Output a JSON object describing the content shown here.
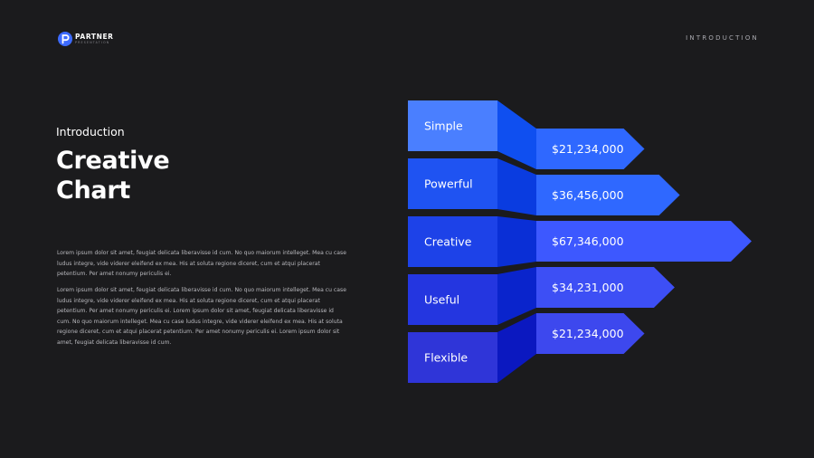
{
  "brand": {
    "name": "PARTNER",
    "tagline": "PRESENTATION"
  },
  "header": {
    "section": "INTRODUCTION"
  },
  "hero": {
    "subtitle": "Introduction",
    "title_line1": "Creative",
    "title_line2": "Chart"
  },
  "body": {
    "paragraph1": "Lorem ipsum dolor sit amet, feugiat delicata liberavisse id cum. No quo maiorum intelleget. Mea cu case ludus integre, vide viderer eleifend ex mea. His at soluta regione diceret, cum et atqui placerat petentium. Per amet nonumy periculis ei.",
    "paragraph2": "Lorem ipsum dolor sit amet, feugiat delicata liberavisse id cum. No quo maiorum intelleget. Mea cu case ludus integre, vide viderer eleifend ex mea. His at soluta regione diceret, cum et atqui placerat petentium. Per amet nonumy periculis ei. Lorem ipsum dolor sit amet, feugiat delicata liberavisse id cum. No quo maiorum intelleget. Mea cu case ludus integre, vide viderer eleifend ex mea. His at soluta regione diceret, cum et atqui placerat petentium. Per amet nonumy periculis ei. Lorem ipsum dolor sit amet, feugiat delicata liberavisse id cum."
  },
  "colors": {
    "background": "#1b1b1d",
    "accent": "#3d6bff",
    "tabs": [
      "#4a7fff",
      "#1f53f2",
      "#1d42e8",
      "#2436e0",
      "#2f35d8"
    ],
    "connectors": [
      "#0f4ff0",
      "#0a3ce0",
      "#0a2fd6",
      "#0a24cc",
      "#0b18c0"
    ],
    "arrows": [
      "#2f68ff",
      "#2f68ff",
      "#3d58ff",
      "#3d4ff5",
      "#3d48ee"
    ]
  },
  "chart_data": {
    "type": "bar",
    "categories": [
      "Simple",
      "Powerful",
      "Creative",
      "Useful",
      "Flexible"
    ],
    "values": [
      21234000,
      36456000,
      67346000,
      34231000,
      21234000
    ],
    "value_labels": [
      "$21,234,000",
      "$36,456,000",
      "$67,346,000",
      "$34,231,000",
      "$21,234,000"
    ],
    "title": "",
    "xlabel": "",
    "ylabel": ""
  }
}
